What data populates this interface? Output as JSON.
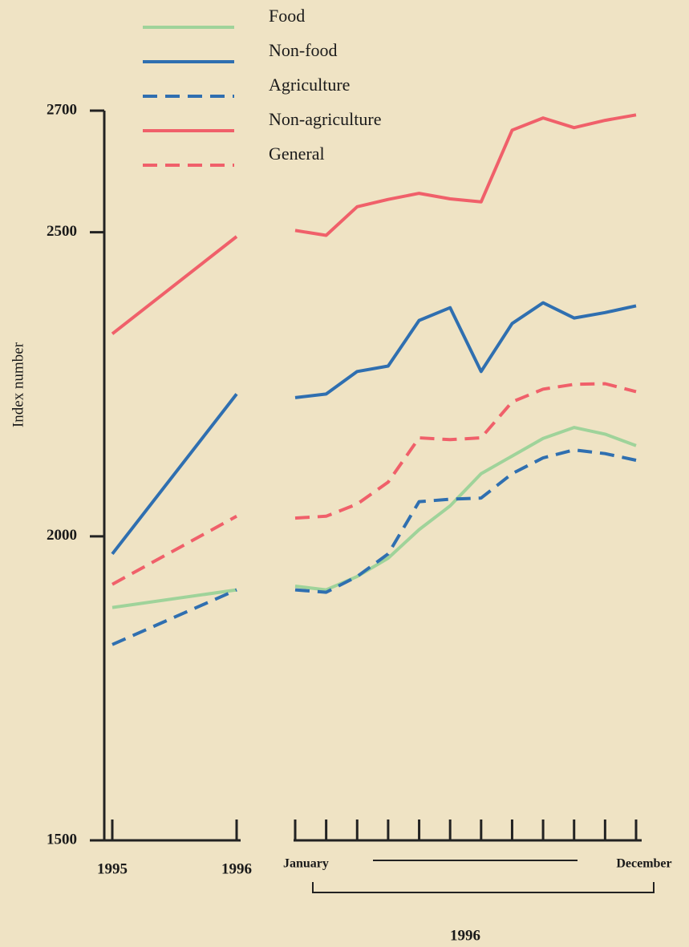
{
  "chart_data": {
    "type": "line",
    "y_label": "Index number",
    "categories": [
      "1995",
      "1996",
      "January",
      null,
      null,
      null,
      null,
      null,
      null,
      null,
      null,
      null,
      null,
      "December"
    ],
    "x_segments": [
      2,
      12
    ],
    "x_group_label": "1996",
    "ylim": [
      1500,
      2700
    ],
    "yticks": [
      1500,
      2000,
      2500,
      2700
    ],
    "legend": "upper left",
    "series": [
      {
        "name": "Food",
        "color": "#9fd39a",
        "dash": false,
        "values": [
          1883,
          1912,
          1918,
          1912,
          1934,
          1964,
          2011,
          2050,
          2103,
          2132,
          2161,
          2179,
          2168,
          2149
        ]
      },
      {
        "name": "Non-food",
        "color": "#2f6fb0",
        "dash": false,
        "values": [
          1971,
          2234,
          2228,
          2234,
          2271,
          2280,
          2355,
          2376,
          2271,
          2350,
          2384,
          2359,
          2368,
          2379
        ]
      },
      {
        "name": "Agriculture",
        "color": "#2f6fb0",
        "dash": true,
        "values": [
          1822,
          1912,
          1912,
          1908,
          1934,
          1971,
          2057,
          2061,
          2063,
          2103,
          2129,
          2142,
          2136,
          2125
        ]
      },
      {
        "name": "Non-agriculture",
        "color": "#f0606a",
        "dash": false,
        "values": [
          2333,
          2493,
          2503,
          2495,
          2542,
          2554,
          2564,
          2555,
          2550,
          2668,
          2688,
          2672,
          2684,
          2693
        ]
      },
      {
        "name": "General",
        "color": "#f0606a",
        "dash": true,
        "values": [
          1921,
          2033,
          2030,
          2033,
          2053,
          2089,
          2162,
          2159,
          2162,
          2221,
          2242,
          2250,
          2251,
          2238
        ]
      }
    ]
  }
}
